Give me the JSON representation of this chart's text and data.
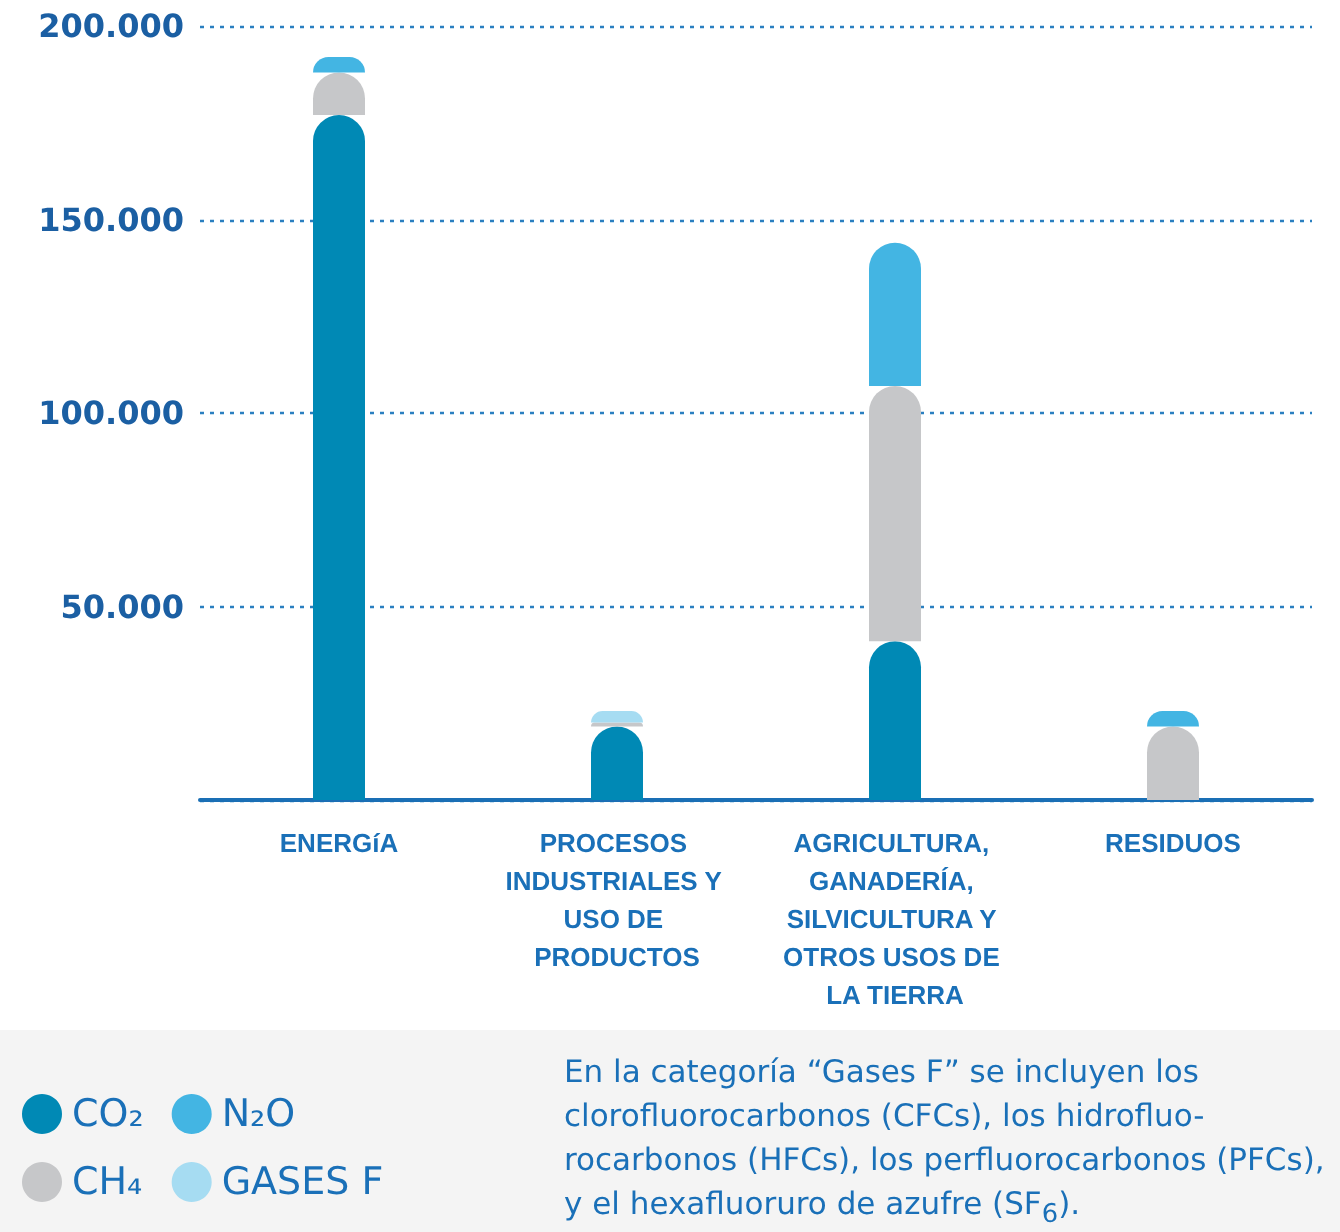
{
  "chart_data": {
    "type": "bar",
    "stacked": true,
    "categories": [
      "ENERGíA",
      "PROCESOS INDUSTRIALES Y USO DE PRODUCTOS",
      "AGRICULTURA, GANADERÍA, SILVICULTURA Y OTROS USOS DE LA TIERRA",
      "RESIDUOS"
    ],
    "series": [
      {
        "name": "CO₂",
        "color": "#0089b5",
        "values": [
          177000,
          19000,
          41000,
          0
        ]
      },
      {
        "name": "CH₄",
        "color": "#c6c7c9",
        "values": [
          11000,
          1000,
          66000,
          19000
        ]
      },
      {
        "name": "N₂O",
        "color": "#43b5e3",
        "values": [
          4000,
          0,
          37000,
          4000
        ]
      },
      {
        "name": "GASES F",
        "color": "#a6dcf2",
        "values": [
          0,
          3000,
          0,
          0
        ]
      }
    ],
    "ylim": [
      0,
      200000
    ],
    "yticks": [
      {
        "value": 0,
        "label": null
      },
      {
        "value": 50000,
        "label": "50.000"
      },
      {
        "value": 100000,
        "label": "100.000"
      },
      {
        "value": 150000,
        "label": "150.000"
      },
      {
        "value": 200000,
        "label": "200.000"
      }
    ],
    "grid": "y",
    "legend": "bottom left",
    "annotations": [
      "En la categoría “Gases F” se incluyen los clorofluorocarbonos (CFCs), los hidrofluo-rocarbonos (HFCs), los perfluorocarbonos (PFCs), y el hexafluoruro de azufre (SF$_{6}$)."
    ]
  }
}
